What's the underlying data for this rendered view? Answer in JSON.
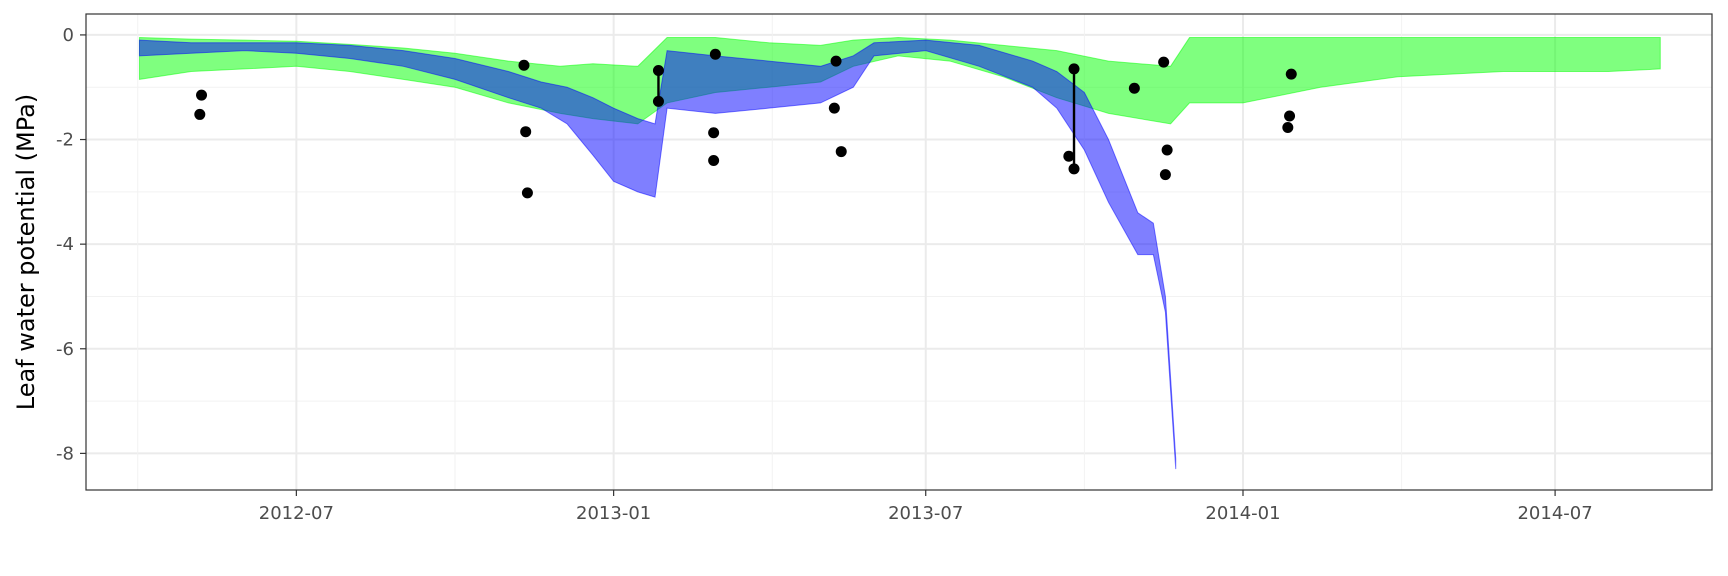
{
  "chart_data": {
    "type": "line",
    "title": "",
    "xlabel": "",
    "ylabel": "Leaf water potential (MPa)",
    "xlim": [
      "2012-03-01",
      "2014-09-30"
    ],
    "ylim": [
      -8.7,
      0.4
    ],
    "x_ticks": [
      {
        "date": "2012-07-01",
        "label": "2012-07"
      },
      {
        "date": "2013-01-01",
        "label": "2013-01"
      },
      {
        "date": "2013-07-01",
        "label": "2013-07"
      },
      {
        "date": "2014-01-01",
        "label": "2014-01"
      },
      {
        "date": "2014-07-01",
        "label": "2014-07"
      }
    ],
    "y_ticks": [
      0,
      -2,
      -4,
      -6,
      -8
    ],
    "y_tick_labels": [
      "0",
      "-2",
      "-4",
      "-6",
      "-8"
    ],
    "grid": true,
    "legend": "none",
    "series": [
      {
        "kind": "ribbon",
        "color": "#00FF00",
        "opacity": 0.5,
        "points": [
          [
            "2012-04-01",
            -0.05,
            -0.85
          ],
          [
            "2012-05-01",
            -0.08,
            -0.7
          ],
          [
            "2012-06-01",
            -0.1,
            -0.65
          ],
          [
            "2012-07-01",
            -0.12,
            -0.6
          ],
          [
            "2012-08-01",
            -0.18,
            -0.7
          ],
          [
            "2012-09-01",
            -0.25,
            -0.85
          ],
          [
            "2012-10-01",
            -0.35,
            -1.0
          ],
          [
            "2012-11-01",
            -0.5,
            -1.3
          ],
          [
            "2012-12-01",
            -0.6,
            -1.5
          ],
          [
            "2012-12-20",
            -0.55,
            -1.6
          ],
          [
            "2013-01-15",
            -0.6,
            -1.7
          ],
          [
            "2013-02-01",
            -0.05,
            -1.3
          ],
          [
            "2013-03-01",
            -0.05,
            -1.1
          ],
          [
            "2013-04-01",
            -0.15,
            -1.0
          ],
          [
            "2013-05-01",
            -0.2,
            -0.9
          ],
          [
            "2013-05-20",
            -0.1,
            -0.6
          ],
          [
            "2013-06-15",
            -0.05,
            -0.4
          ],
          [
            "2013-07-15",
            -0.1,
            -0.5
          ],
          [
            "2013-08-15",
            -0.2,
            -0.8
          ],
          [
            "2013-09-15",
            -0.3,
            -1.2
          ],
          [
            "2013-10-15",
            -0.5,
            -1.5
          ],
          [
            "2013-11-20",
            -0.6,
            -1.7
          ],
          [
            "2013-12-01",
            -0.05,
            -1.3
          ],
          [
            "2014-01-01",
            -0.05,
            -1.3
          ],
          [
            "2014-02-15",
            -0.05,
            -1.0
          ],
          [
            "2014-04-01",
            -0.05,
            -0.8
          ],
          [
            "2014-06-01",
            -0.05,
            -0.7
          ],
          [
            "2014-08-01",
            -0.05,
            -0.7
          ],
          [
            "2014-08-31",
            -0.05,
            -0.65
          ]
        ]
      },
      {
        "kind": "ribbon",
        "color": "#0000FF",
        "opacity": 0.5,
        "points": [
          [
            "2012-04-01",
            -0.1,
            -0.4
          ],
          [
            "2012-05-01",
            -0.15,
            -0.35
          ],
          [
            "2012-06-01",
            -0.15,
            -0.3
          ],
          [
            "2012-07-01",
            -0.15,
            -0.35
          ],
          [
            "2012-08-01",
            -0.2,
            -0.45
          ],
          [
            "2012-09-01",
            -0.3,
            -0.6
          ],
          [
            "2012-10-01",
            -0.45,
            -0.85
          ],
          [
            "2012-11-01",
            -0.7,
            -1.2
          ],
          [
            "2012-11-20",
            -0.9,
            -1.4
          ],
          [
            "2012-12-05",
            -1.0,
            -1.7
          ],
          [
            "2012-12-20",
            -1.2,
            -2.3
          ],
          [
            "2013-01-01",
            -1.4,
            -2.8
          ],
          [
            "2013-01-15",
            -1.6,
            -3.0
          ],
          [
            "2013-01-25",
            -1.7,
            -3.1
          ],
          [
            "2013-02-01",
            -0.3,
            -1.4
          ],
          [
            "2013-03-01",
            -0.4,
            -1.5
          ],
          [
            "2013-04-01",
            -0.5,
            -1.4
          ],
          [
            "2013-05-01",
            -0.6,
            -1.3
          ],
          [
            "2013-05-20",
            -0.4,
            -1.0
          ],
          [
            "2013-06-01",
            -0.15,
            -0.4
          ],
          [
            "2013-07-01",
            -0.1,
            -0.3
          ],
          [
            "2013-08-01",
            -0.2,
            -0.6
          ],
          [
            "2013-09-01",
            -0.5,
            -1.0
          ],
          [
            "2013-09-15",
            -0.7,
            -1.4
          ],
          [
            "2013-10-01",
            -1.1,
            -2.2
          ],
          [
            "2013-10-15",
            -2.0,
            -3.2
          ],
          [
            "2013-11-01",
            -3.4,
            -4.2
          ],
          [
            "2013-11-10",
            -3.6,
            -4.2
          ],
          [
            "2013-11-17",
            -5.0,
            -5.3
          ],
          [
            "2013-11-23",
            -8.1,
            -8.3
          ]
        ]
      }
    ],
    "points": [
      {
        "x": "2012-05-07",
        "y": -1.15
      },
      {
        "x": "2012-05-06",
        "y": -1.52
      },
      {
        "x": "2012-11-10",
        "y": -0.58
      },
      {
        "x": "2012-11-11",
        "y": -1.85
      },
      {
        "x": "2012-11-12",
        "y": -3.02
      },
      {
        "x": "2013-01-27",
        "y": -0.68
      },
      {
        "x": "2013-01-27",
        "y": -1.27
      },
      {
        "x": "2013-03-01",
        "y": -0.37
      },
      {
        "x": "2013-02-28",
        "y": -1.87
      },
      {
        "x": "2013-02-28",
        "y": -2.4
      },
      {
        "x": "2013-05-10",
        "y": -0.5
      },
      {
        "x": "2013-05-09",
        "y": -1.4
      },
      {
        "x": "2013-05-13",
        "y": -2.23
      },
      {
        "x": "2013-09-22",
        "y": -2.32
      },
      {
        "x": "2013-09-25",
        "y": -0.65
      },
      {
        "x": "2013-09-25",
        "y": -2.56
      },
      {
        "x": "2013-10-30",
        "y": -1.02
      },
      {
        "x": "2013-11-16",
        "y": -0.52
      },
      {
        "x": "2013-11-18",
        "y": -2.2
      },
      {
        "x": "2013-11-17",
        "y": -2.67
      },
      {
        "x": "2014-01-27",
        "y": -1.77
      },
      {
        "x": "2014-01-28",
        "y": -1.55
      },
      {
        "x": "2014-01-29",
        "y": -0.75
      }
    ],
    "segments": [
      {
        "x": "2013-01-27",
        "y1": -0.68,
        "y2": -1.27
      },
      {
        "x": "2013-09-25",
        "y1": -0.65,
        "y2": -2.56
      }
    ]
  }
}
